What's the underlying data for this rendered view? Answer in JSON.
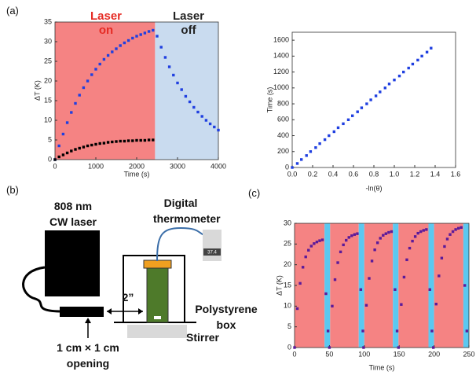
{
  "panel_labels": [
    "(a)",
    "(b)",
    "(c)"
  ],
  "diagram": {
    "laser": "808 nm CW laser",
    "thermometer": "Digital thermometer",
    "display": "37.4",
    "distance": "2”",
    "box": "Polystyrene box",
    "stirrer": "Stirrer",
    "opening": "1 cm × 1 cm opening"
  },
  "chart_data": [
    {
      "type": "scatter",
      "xlabel": "Time (s)",
      "ylabel": "ΔT (K)",
      "xlim": [
        0,
        4000
      ],
      "xticks": [
        0,
        1000,
        2000,
        3000,
        4000
      ],
      "ylim": [
        0,
        35
      ],
      "yticks": [
        0,
        5,
        10,
        15,
        20,
        25,
        30,
        35
      ],
      "annotations": [
        {
          "text": "Laser on",
          "color": "#e52b24"
        },
        {
          "text": "Laser off",
          "color": "#222222"
        }
      ],
      "regions": [
        {
          "start": 0,
          "end": 2450,
          "color": "#f58383"
        },
        {
          "start": 2450,
          "end": 4000,
          "color": "#c9dbef"
        }
      ],
      "x": [
        0,
        100,
        200,
        300,
        400,
        500,
        600,
        700,
        800,
        900,
        1000,
        1100,
        1200,
        1300,
        1400,
        1500,
        1600,
        1700,
        1800,
        1900,
        2000,
        2100,
        2200,
        2300,
        2400,
        2500,
        2600,
        2700,
        2800,
        2900,
        3000,
        3100,
        3200,
        3300,
        3400,
        3500,
        3600,
        3700,
        3800,
        3900,
        4000
      ],
      "series": [
        {
          "color": "#1f3fe0",
          "values": [
            0,
            3.5,
            6.5,
            9.4,
            12,
            14.3,
            16.4,
            18.3,
            20,
            21.6,
            23,
            24.3,
            25.5,
            26.5,
            27.4,
            28.2,
            29,
            29.7,
            30.3,
            30.9,
            31.4,
            31.8,
            32.2,
            32.6,
            32.9,
            31.4,
            28.6,
            26.0,
            23.6,
            21.5,
            19.5,
            17.8,
            16.1,
            14.7,
            13.3,
            12.1,
            11.0,
            10.0,
            9.1,
            8.3,
            7.5
          ]
        },
        {
          "color": "#000000",
          "values": [
            0,
            0.7,
            1.2,
            1.7,
            2.2,
            2.6,
            2.9,
            3.2,
            3.5,
            3.7,
            3.9,
            4.1,
            4.2,
            4.4,
            4.5,
            4.6,
            4.7,
            4.7,
            4.8,
            4.8,
            4.9,
            4.9,
            4.9,
            5.0,
            5.0,
            null,
            null,
            null,
            null,
            null,
            null,
            null,
            null,
            null,
            null,
            null,
            null,
            null,
            null,
            null,
            null
          ]
        }
      ]
    },
    {
      "type": "scatter",
      "xlabel": "-ln(θ)",
      "ylabel": "Time (s)",
      "xlim": [
        0,
        1.6
      ],
      "xticks": [
        {
          "value": 0,
          "label": "0.0"
        },
        0.2,
        0.4,
        0.6,
        0.8,
        {
          "value": 1,
          "label": "1.0"
        },
        1.2,
        1.4,
        1.6
      ],
      "ylim": [
        0,
        1700
      ],
      "yticks": [
        0,
        200,
        400,
        600,
        800,
        1000,
        1200,
        1400,
        1600
      ],
      "x": [
        0,
        0.05,
        0.09,
        0.14,
        0.18,
        0.23,
        0.27,
        0.32,
        0.36,
        0.41,
        0.45,
        0.5,
        0.55,
        0.59,
        0.64,
        0.68,
        0.73,
        0.77,
        0.82,
        0.86,
        0.91,
        0.95,
        1.0,
        1.05,
        1.09,
        1.14,
        1.18,
        1.23,
        1.27,
        1.32,
        1.36
      ],
      "series": [
        {
          "color": "#1f3fe0",
          "values": [
            0,
            50,
            100,
            150,
            200,
            250,
            300,
            350,
            400,
            450,
            500,
            550,
            600,
            650,
            700,
            750,
            800,
            850,
            900,
            950,
            1000,
            1050,
            1100,
            1150,
            1200,
            1250,
            1300,
            1350,
            1400,
            1450,
            1500
          ]
        }
      ]
    },
    {
      "type": "scatter",
      "xlabel": "Time (s)",
      "ylabel": "ΔT (K)",
      "xlim": [
        0,
        250
      ],
      "xticks": [
        0,
        50,
        100,
        150,
        200,
        250
      ],
      "ylim": [
        0,
        30
      ],
      "yticks": [
        0,
        5,
        10,
        15,
        20,
        25,
        30
      ],
      "regions": [
        {
          "start": 0,
          "end": 43,
          "color": "#f58383"
        },
        {
          "start": 43,
          "end": 51,
          "color": "#5cc8f0"
        },
        {
          "start": 51,
          "end": 92,
          "color": "#f58383"
        },
        {
          "start": 92,
          "end": 100,
          "color": "#5cc8f0"
        },
        {
          "start": 100,
          "end": 141,
          "color": "#f58383"
        },
        {
          "start": 141,
          "end": 149,
          "color": "#5cc8f0"
        },
        {
          "start": 149,
          "end": 192,
          "color": "#f58383"
        },
        {
          "start": 192,
          "end": 200,
          "color": "#5cc8f0"
        },
        {
          "start": 200,
          "end": 242,
          "color": "#f58383"
        },
        {
          "start": 242,
          "end": 250,
          "color": "#5cc8f0"
        }
      ],
      "x": [
        0,
        4,
        8,
        12,
        16,
        20,
        24,
        28,
        32,
        36,
        40,
        45,
        48,
        50,
        54,
        58,
        62,
        66,
        70,
        74,
        78,
        82,
        86,
        90,
        95,
        98,
        99,
        103,
        107,
        111,
        115,
        119,
        123,
        127,
        131,
        135,
        139,
        144,
        147,
        149,
        153,
        157,
        161,
        165,
        169,
        173,
        177,
        181,
        185,
        189,
        194,
        197,
        199,
        203,
        207,
        211,
        215,
        219,
        223,
        227,
        231,
        235,
        239,
        244,
        247
      ],
      "series": [
        {
          "color": "#5b1a9a",
          "values": [
            0,
            9.4,
            15.5,
            19.4,
            21.9,
            23.5,
            24.5,
            25.1,
            25.5,
            25.8,
            26.0,
            13,
            4,
            0,
            10.0,
            16.4,
            20.5,
            23.1,
            24.8,
            25.9,
            26.6,
            27.0,
            27.3,
            27.5,
            14,
            4,
            0,
            10.2,
            16.7,
            20.9,
            23.6,
            25.3,
            26.4,
            27.1,
            27.5,
            27.8,
            28.0,
            14,
            4,
            0,
            10.4,
            17.0,
            21.2,
            24.0,
            25.7,
            26.8,
            27.6,
            28.0,
            28.3,
            28.5,
            14,
            4,
            0,
            10.5,
            17.3,
            21.6,
            24.4,
            26.2,
            27.3,
            28.0,
            28.5,
            28.8,
            29.0,
            15,
            4
          ]
        }
      ]
    }
  ]
}
